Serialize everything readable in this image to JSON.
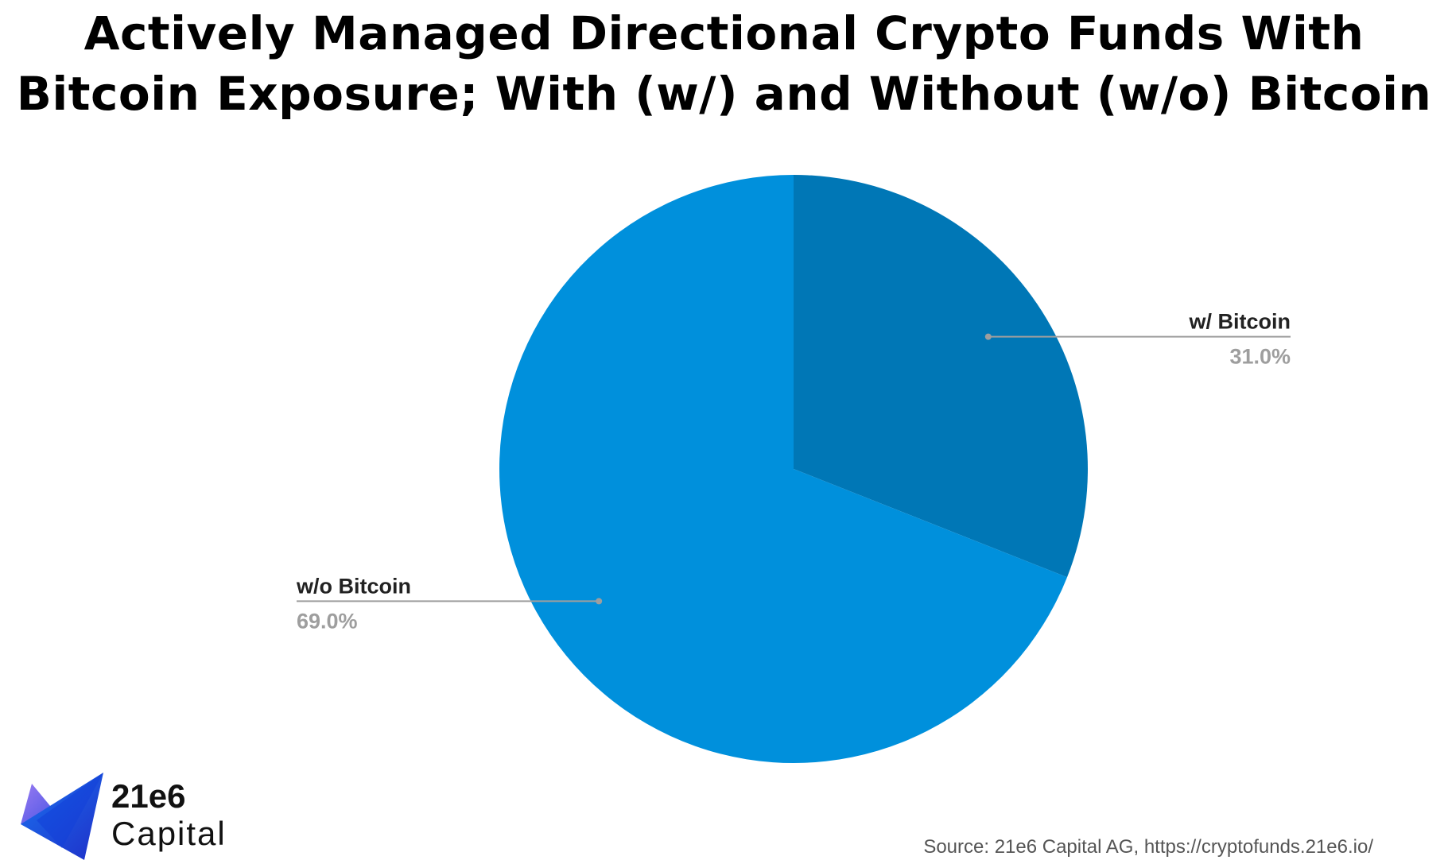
{
  "title": {
    "line1": "Actively Managed Directional Crypto Funds With",
    "line2": "Bitcoin Exposure; With (w/) and Without (w/o) Bitcoin"
  },
  "chart_data": {
    "type": "pie",
    "slices": [
      {
        "label": "w/ Bitcoin",
        "value": 31.0,
        "display": "31.0%",
        "color": "#0077b6"
      },
      {
        "label": "w/o Bitcoin",
        "value": 69.0,
        "display": "69.0%",
        "color": "#0090dc"
      }
    ],
    "start_angle_deg": 0,
    "direction": "clockwise",
    "legend": "none",
    "label_style": "callout-lines"
  },
  "logo": {
    "line1": "21e6",
    "line2": "Capital"
  },
  "source": "Source: 21e6 Capital AG, https://cryptofunds.21e6.io/",
  "colors": {
    "label_text": "#222222",
    "value_text": "#9e9e9e",
    "leader_line": "#9e9e9e"
  }
}
